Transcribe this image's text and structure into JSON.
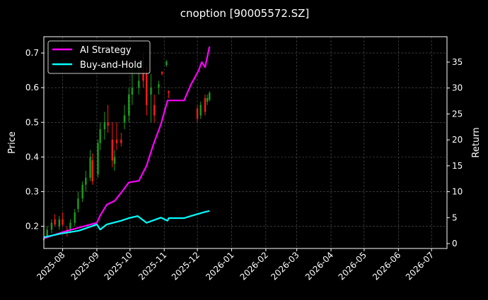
{
  "chart_data": {
    "type": "line",
    "title": "cnoption [90005572.SZ]",
    "ylabel_left": "Price",
    "ylabel_right": "Return",
    "xlabel": "",
    "xlim": [
      "2025-07-15",
      "2026-07-15"
    ],
    "ylim_left": [
      0.136,
      0.747
    ],
    "ylim_right": [
      -0.95,
      39.9
    ],
    "grid": true,
    "legend_position": "top-left",
    "x_ticks": [
      "2025-08",
      "2025-09",
      "2025-10",
      "2025-11",
      "2025-12",
      "2026-01",
      "2026-02",
      "2026-03",
      "2026-04",
      "2026-05",
      "2026-06",
      "2026-07"
    ],
    "y_ticks_left": [
      0.2,
      0.3,
      0.4,
      0.5,
      0.6,
      0.7
    ],
    "y_ticks_right": [
      0,
      5,
      10,
      15,
      20,
      25,
      30,
      35
    ],
    "colors": {
      "up": "#1a9e1a",
      "down": "#ff1a1a",
      "ai": "#ff00ff",
      "bh": "#00ffff",
      "grid": "#555555"
    },
    "candles": [
      [
        "2025-07-15",
        0.16,
        0.17,
        0.155,
        0.165
      ],
      [
        "2025-07-18",
        0.17,
        0.2,
        0.165,
        0.19
      ],
      [
        "2025-07-22",
        0.19,
        0.22,
        0.18,
        0.21
      ],
      [
        "2025-07-25",
        0.22,
        0.235,
        0.2,
        0.205
      ],
      [
        "2025-07-29",
        0.2,
        0.23,
        0.19,
        0.22
      ],
      [
        "2025-08-01",
        0.22,
        0.24,
        0.2,
        0.205
      ],
      [
        "2025-08-05",
        0.19,
        0.2,
        0.17,
        0.18
      ],
      [
        "2025-08-08",
        0.19,
        0.22,
        0.18,
        0.21
      ],
      [
        "2025-08-12",
        0.21,
        0.25,
        0.2,
        0.24
      ],
      [
        "2025-08-15",
        0.25,
        0.3,
        0.24,
        0.28
      ],
      [
        "2025-08-19",
        0.28,
        0.33,
        0.27,
        0.32
      ],
      [
        "2025-08-22",
        0.32,
        0.36,
        0.3,
        0.34
      ],
      [
        "2025-08-26",
        0.34,
        0.42,
        0.33,
        0.4
      ],
      [
        "2025-08-28",
        0.39,
        0.41,
        0.32,
        0.33
      ],
      [
        "2025-09-02",
        0.35,
        0.45,
        0.34,
        0.44
      ],
      [
        "2025-09-04",
        0.44,
        0.5,
        0.42,
        0.48
      ],
      [
        "2025-09-08",
        0.48,
        0.53,
        0.45,
        0.5
      ],
      [
        "2025-09-11",
        0.5,
        0.55,
        0.47,
        0.49
      ],
      [
        "2025-09-15",
        0.45,
        0.5,
        0.37,
        0.39
      ],
      [
        "2025-09-17",
        0.38,
        0.42,
        0.36,
        0.4
      ],
      [
        "2025-09-19",
        0.45,
        0.5,
        0.42,
        0.44
      ],
      [
        "2025-09-23",
        0.45,
        0.47,
        0.43,
        0.44
      ],
      [
        "2025-09-26",
        0.5,
        0.55,
        0.48,
        0.52
      ],
      [
        "2025-09-30",
        0.52,
        0.6,
        0.5,
        0.58
      ],
      [
        "2025-10-03",
        0.58,
        0.66,
        0.55,
        0.6
      ],
      [
        "2025-10-09",
        0.6,
        0.68,
        0.58,
        0.62
      ],
      [
        "2025-10-13",
        0.64,
        0.7,
        0.6,
        0.62
      ],
      [
        "2025-10-16",
        0.64,
        0.66,
        0.52,
        0.55
      ],
      [
        "2025-10-20",
        0.58,
        0.64,
        0.5,
        0.6
      ],
      [
        "2025-10-23",
        0.55,
        0.58,
        0.5,
        0.52
      ],
      [
        "2025-10-27",
        0.6,
        0.62,
        0.58,
        0.61
      ],
      [
        "2025-10-30",
        0.645,
        0.648,
        0.635,
        0.64
      ],
      [
        "2025-11-03",
        0.665,
        0.68,
        0.66,
        0.675
      ],
      [
        "2025-11-05",
        0.59,
        0.592,
        0.57,
        0.585
      ],
      [
        "2025-12-01",
        0.54,
        0.55,
        0.5,
        0.51
      ],
      [
        "2025-12-04",
        0.52,
        0.56,
        0.51,
        0.55
      ],
      [
        "2025-12-08",
        0.57,
        0.58,
        0.52,
        0.53
      ],
      [
        "2025-12-10",
        0.56,
        0.58,
        0.55,
        0.57
      ],
      [
        "2025-12-12",
        0.565,
        0.59,
        0.56,
        0.585
      ]
    ],
    "series": [
      {
        "name": "AI Strategy",
        "axis": "right",
        "x": [
          "2025-07-15",
          "2025-08-01",
          "2025-08-16",
          "2025-09-01",
          "2025-09-04",
          "2025-09-10",
          "2025-09-17",
          "2025-09-23",
          "2025-09-30",
          "2025-10-09",
          "2025-10-16",
          "2025-10-22",
          "2025-10-29",
          "2025-11-04",
          "2025-11-19",
          "2025-11-25",
          "2025-12-02",
          "2025-12-05",
          "2025-12-08",
          "2025-12-12"
        ],
        "values": [
          1.0,
          2.2,
          3.1,
          4.0,
          5.4,
          7.5,
          8.2,
          9.8,
          11.8,
          12.1,
          15.0,
          19.0,
          23.0,
          27.6,
          27.6,
          30.6,
          33.3,
          35.0,
          34.0,
          38.0
        ]
      },
      {
        "name": "Buy-and-Hold",
        "axis": "right",
        "x": [
          "2025-07-15",
          "2025-07-30",
          "2025-08-16",
          "2025-09-01",
          "2025-09-04",
          "2025-09-10",
          "2025-09-23",
          "2025-09-30",
          "2025-10-08",
          "2025-10-16",
          "2025-10-29",
          "2025-11-04",
          "2025-11-05",
          "2025-11-19",
          "2025-11-25",
          "2025-12-08",
          "2025-12-12"
        ],
        "values": [
          1.2,
          1.9,
          2.5,
          3.7,
          2.7,
          3.7,
          4.4,
          4.9,
          5.3,
          4.0,
          5.0,
          4.4,
          4.9,
          4.9,
          5.3,
          6.1,
          6.3
        ]
      }
    ]
  }
}
